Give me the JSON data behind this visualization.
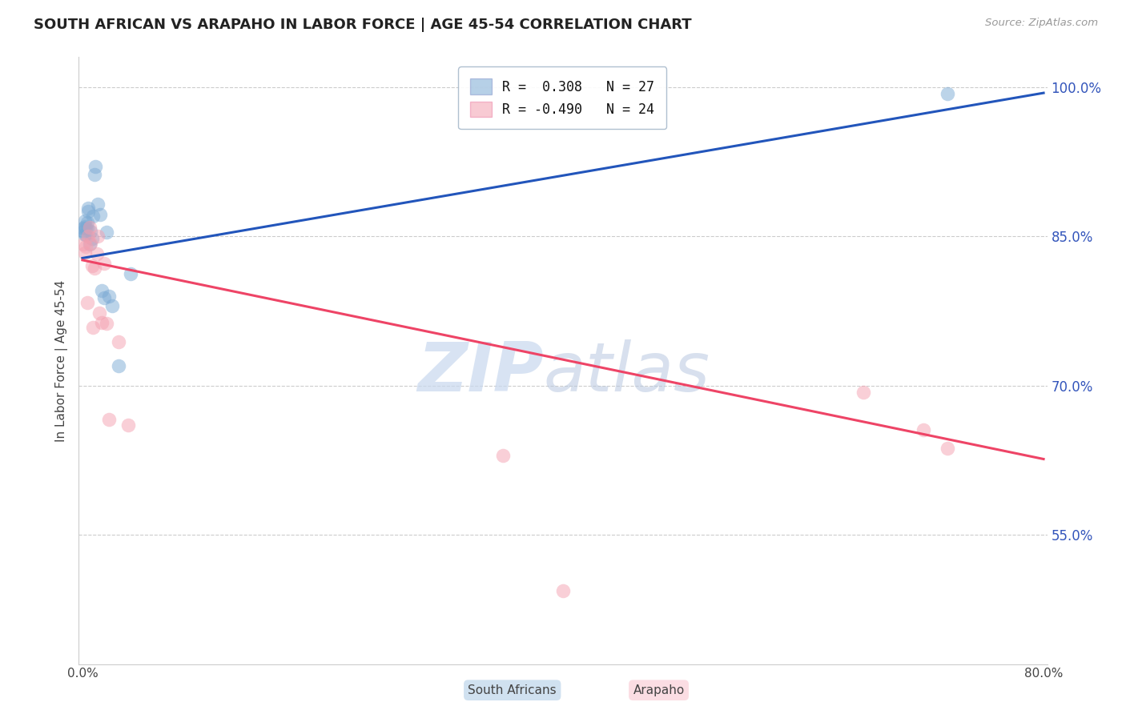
{
  "title": "SOUTH AFRICAN VS ARAPAHO IN LABOR FORCE | AGE 45-54 CORRELATION CHART",
  "source": "Source: ZipAtlas.com",
  "ylabel": "In Labor Force | Age 45-54",
  "legend_r_blue": "R =  0.308",
  "legend_n_blue": "N = 27",
  "legend_r_pink": "R = -0.490",
  "legend_n_pink": "N = 24",
  "legend_label_blue": "South Africans",
  "legend_label_pink": "Arapaho",
  "blue_color": "#7BAAD4",
  "pink_color": "#F4A0B0",
  "blue_line_color": "#2255BB",
  "pink_line_color": "#EE4466",
  "watermark_zip": "ZIP",
  "watermark_atlas": "atlas",
  "xlim": [
    -0.003,
    0.803
  ],
  "ylim": [
    0.42,
    1.03
  ],
  "right_yticks": [
    0.55,
    0.7,
    0.85,
    1.0
  ],
  "right_yticklabels": [
    "55.0%",
    "70.0%",
    "85.0%",
    "100.0%"
  ],
  "xtick_positions": [
    0.0,
    0.1,
    0.2,
    0.3,
    0.4,
    0.5,
    0.6,
    0.7,
    0.8
  ],
  "blue_x": [
    0.001,
    0.001,
    0.002,
    0.002,
    0.002,
    0.003,
    0.003,
    0.004,
    0.004,
    0.005,
    0.005,
    0.006,
    0.007,
    0.008,
    0.009,
    0.01,
    0.011,
    0.013,
    0.015,
    0.016,
    0.018,
    0.02,
    0.022,
    0.025,
    0.03,
    0.04,
    0.72
  ],
  "blue_y": [
    0.855,
    0.858,
    0.852,
    0.86,
    0.865,
    0.852,
    0.858,
    0.858,
    0.864,
    0.875,
    0.878,
    0.842,
    0.855,
    0.848,
    0.87,
    0.912,
    0.92,
    0.882,
    0.872,
    0.795,
    0.788,
    0.854,
    0.79,
    0.78,
    0.72,
    0.812,
    0.993
  ],
  "pink_x": [
    0.001,
    0.002,
    0.003,
    0.004,
    0.005,
    0.006,
    0.007,
    0.008,
    0.009,
    0.01,
    0.012,
    0.013,
    0.014,
    0.016,
    0.018,
    0.02,
    0.022,
    0.03,
    0.038,
    0.35,
    0.4,
    0.65,
    0.7,
    0.72
  ],
  "pink_y": [
    0.842,
    0.833,
    0.84,
    0.783,
    0.85,
    0.859,
    0.843,
    0.82,
    0.758,
    0.818,
    0.832,
    0.85,
    0.773,
    0.763,
    0.823,
    0.762,
    0.666,
    0.744,
    0.66,
    0.63,
    0.494,
    0.693,
    0.655,
    0.637
  ],
  "blue_trend_x": [
    0.0,
    0.8
  ],
  "blue_trend_y": [
    0.828,
    0.994
  ],
  "pink_trend_x": [
    0.0,
    0.8
  ],
  "pink_trend_y": [
    0.826,
    0.626
  ]
}
